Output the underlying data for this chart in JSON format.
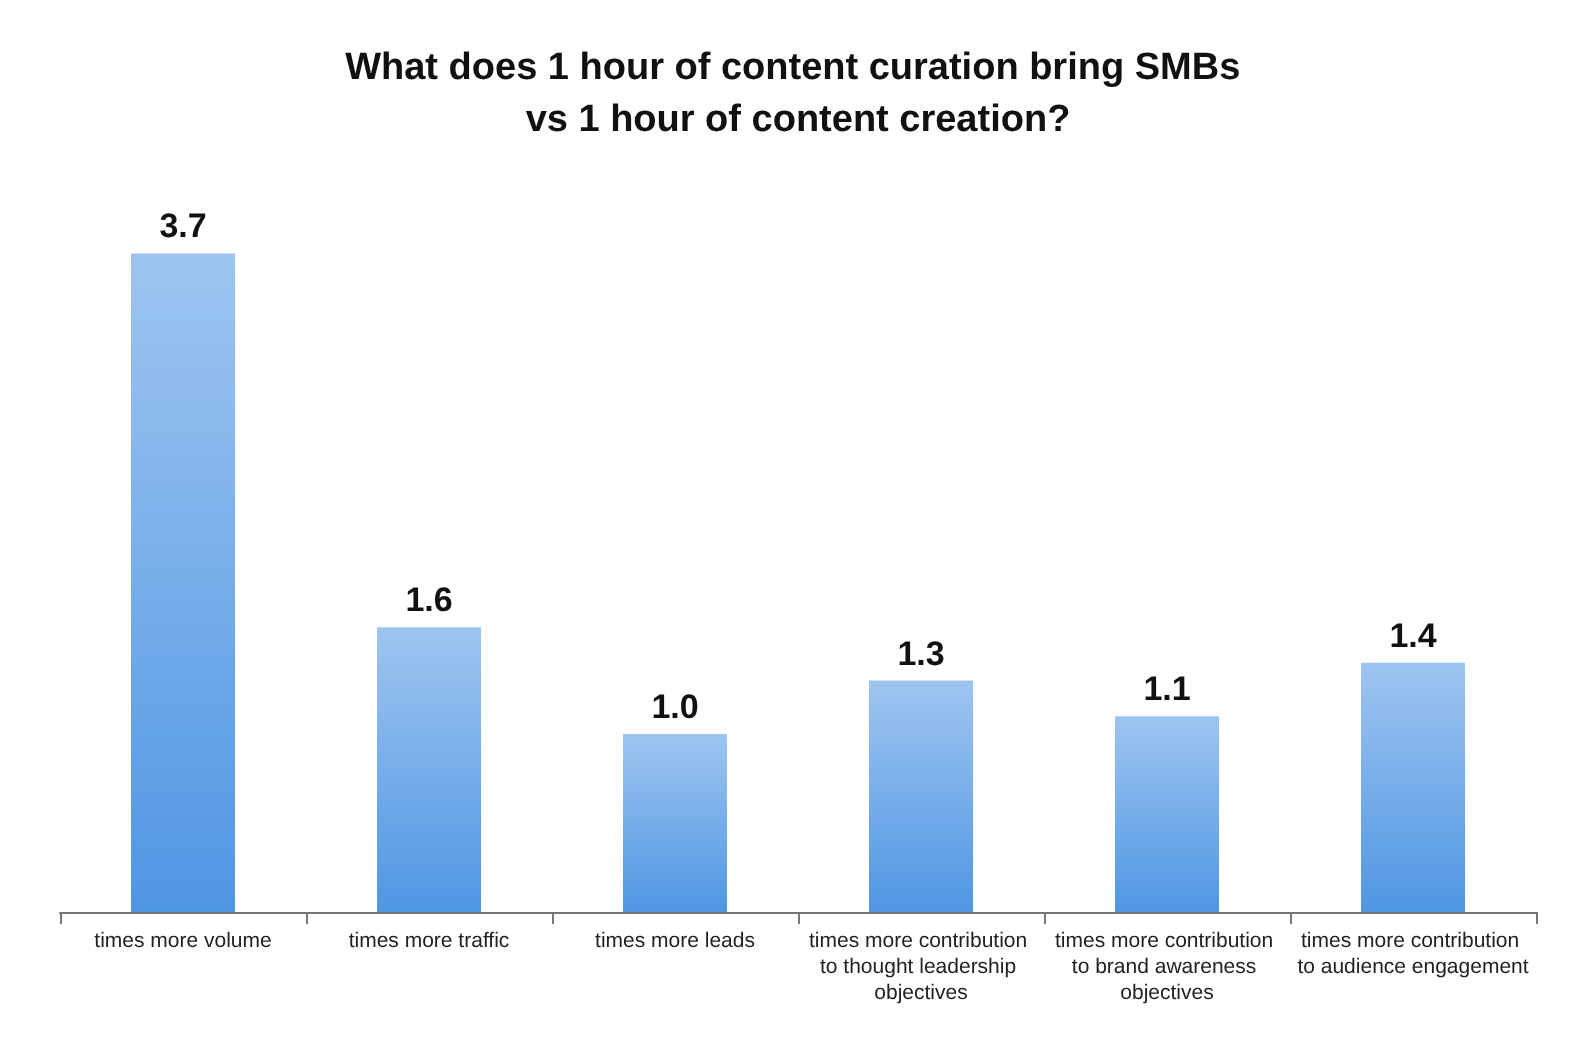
{
  "chart_data": {
    "type": "bar",
    "title": "What does 1 hour of content curation bring SMBs vs 1 hour of content creation?",
    "categories": [
      "times more volume",
      "times more traffic",
      "times more leads",
      "times more contribution to thought leadership objectives",
      "times more contribution to brand awareness objectives",
      "times more contribution to audience engagement"
    ],
    "values": [
      3.7,
      1.6,
      1.0,
      1.3,
      1.1,
      1.4
    ],
    "value_labels": [
      "3.7",
      "1.6",
      "1.0",
      "1.3",
      "1.1",
      "1.4"
    ],
    "color": "#4f96e3"
  }
}
